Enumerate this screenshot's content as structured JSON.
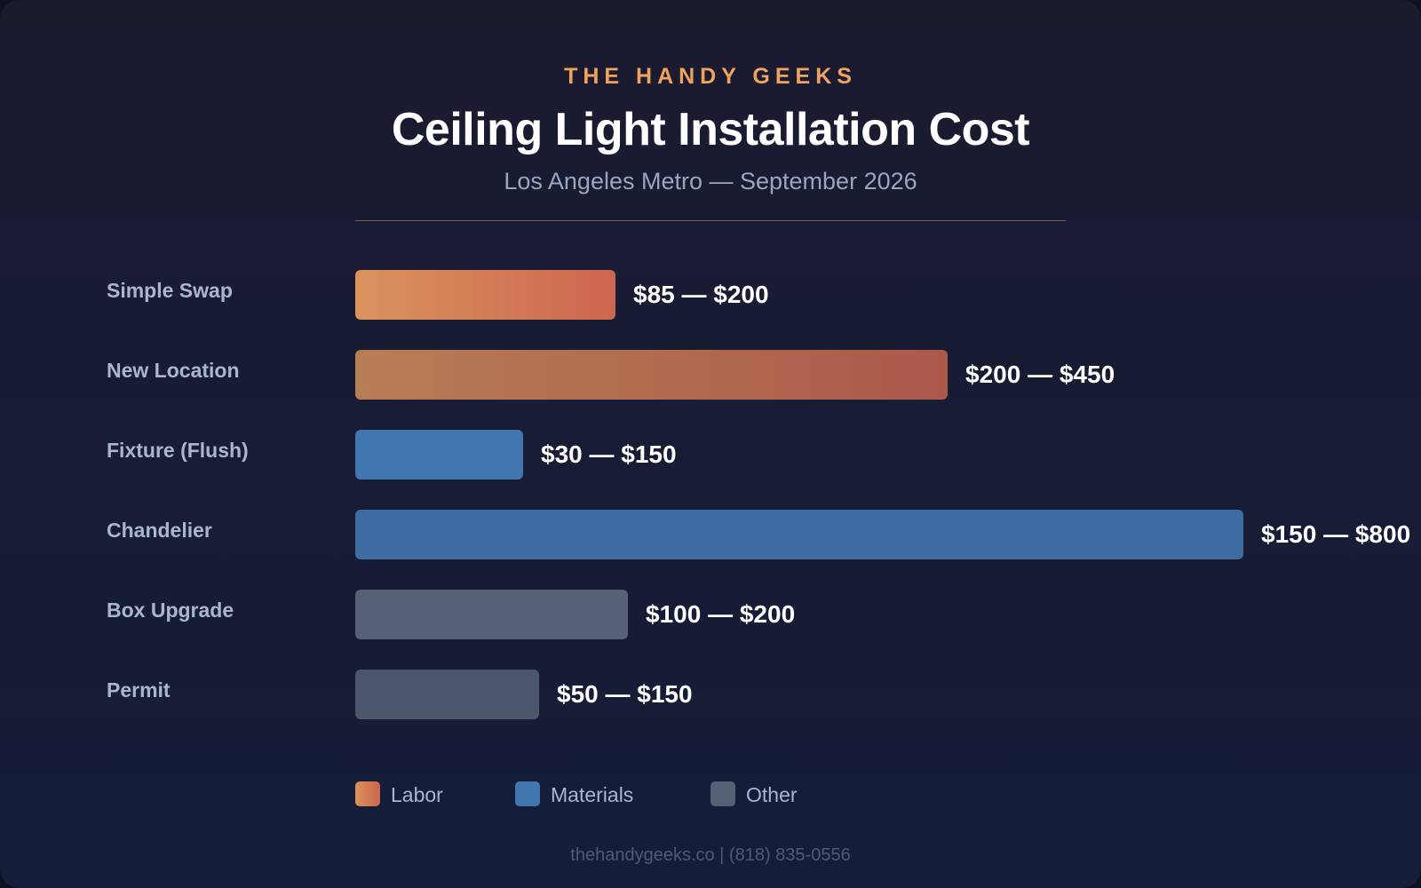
{
  "header": {
    "brand": "THE HANDY GEEKS",
    "title": "Ceiling Light Installation Cost",
    "subtitle": "Los Angeles Metro — September 2026"
  },
  "footer": "thehandygeeks.co | (818) 835-0556",
  "colors": {
    "labor_start": "#d9935d",
    "labor_end": "#cd6650",
    "materials": "#4177b1",
    "other": "#556175"
  },
  "chart_data": {
    "type": "bar",
    "orientation": "horizontal",
    "title": "Ceiling Light Installation Cost",
    "subtitle": "Los Angeles Metro — September 2026",
    "categories": [
      "Simple Swap",
      "New Location",
      "Fixture (Flush)",
      "Chandelier",
      "Box Upgrade",
      "Permit"
    ],
    "ranges": [
      [
        85,
        200
      ],
      [
        200,
        450
      ],
      [
        30,
        150
      ],
      [
        150,
        800
      ],
      [
        100,
        200
      ],
      [
        50,
        150
      ]
    ],
    "value_labels": [
      "$85 — $200",
      "$200 — $450",
      "$30 — $150",
      "$150 — $800",
      "$100 — $200",
      "$50 — $150"
    ],
    "groups": [
      "Labor",
      "Labor",
      "Materials",
      "Materials",
      "Other",
      "Other"
    ],
    "legend": [
      {
        "name": "Labor",
        "color": "#d9935d"
      },
      {
        "name": "Materials",
        "color": "#4177b1"
      },
      {
        "name": "Other",
        "color": "#556175"
      }
    ],
    "legend_position": "bottom",
    "grid": false
  }
}
